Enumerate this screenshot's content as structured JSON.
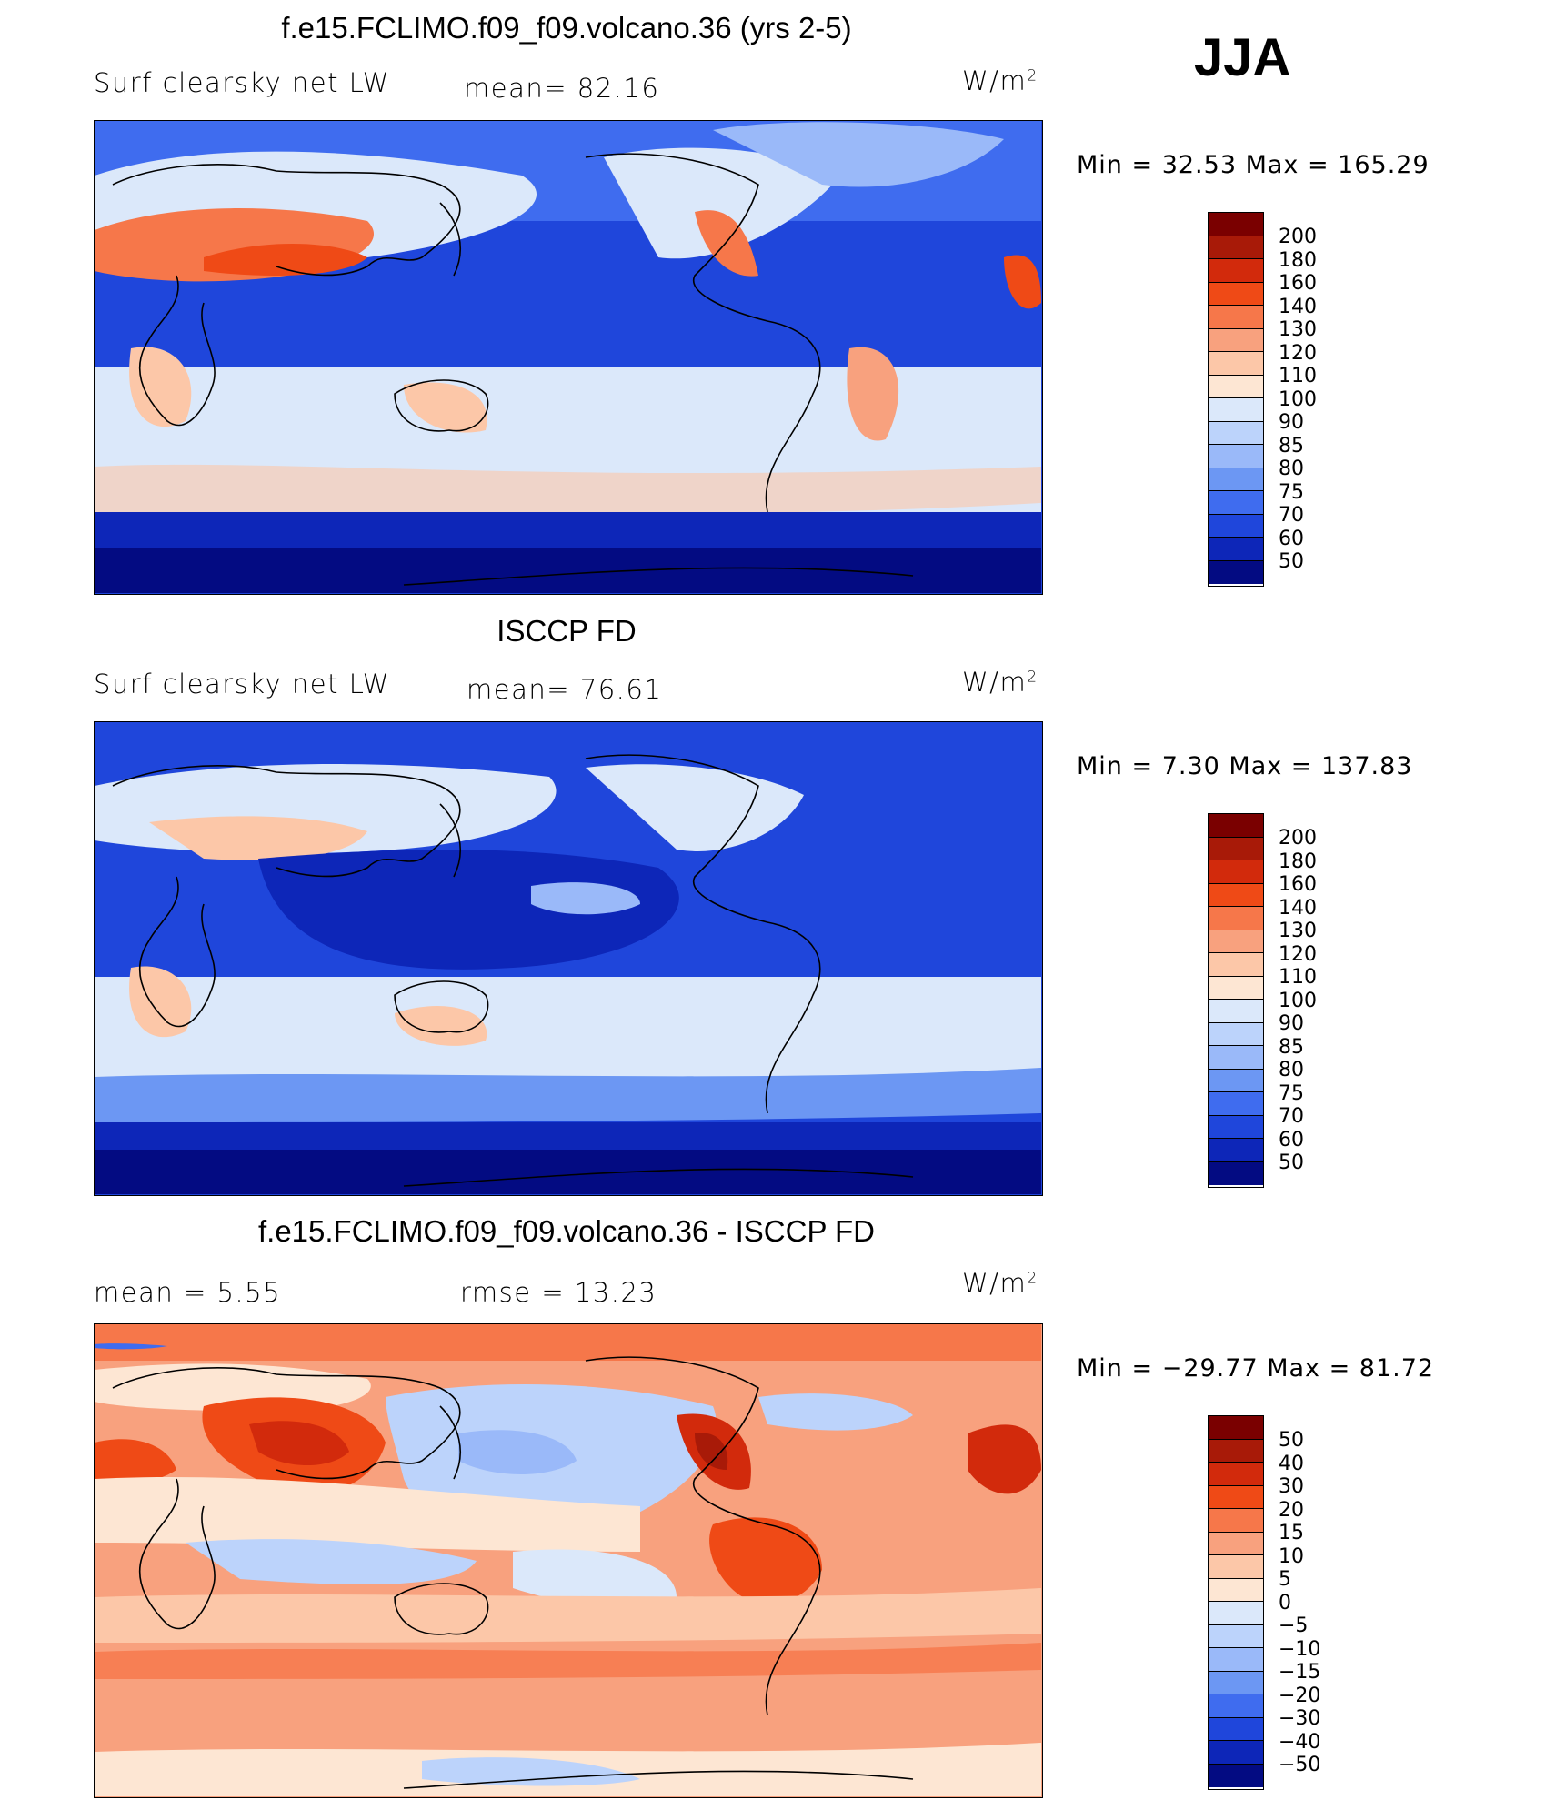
{
  "season": "JJA",
  "panels": [
    {
      "title": "f.e15.FCLIMO.f09_f09.volcano.36 (yrs 2-5)",
      "left_label": "Surf clearsky net LW",
      "center_label": "mean=  82.16",
      "units_base": "W/m",
      "units_exp": "2",
      "minmax": "Min =   32.53 Max = 165.29",
      "colorbar_levels": [
        "200",
        "180",
        "160",
        "140",
        "130",
        "120",
        "110",
        "100",
        "90",
        "85",
        "80",
        "75",
        "70",
        "60",
        "50"
      ]
    },
    {
      "title": "ISCCP FD",
      "left_label": "Surf clearsky net LW",
      "center_label": "mean=  76.61",
      "units_base": "W/m",
      "units_exp": "2",
      "minmax": "Min =    7.30 Max = 137.83",
      "colorbar_levels": [
        "200",
        "180",
        "160",
        "140",
        "130",
        "120",
        "110",
        "100",
        "90",
        "85",
        "80",
        "75",
        "70",
        "60",
        "50"
      ]
    },
    {
      "title": "f.e15.FCLIMO.f09_f09.volcano.36 - ISCCP FD",
      "left_label": "mean =    5.55",
      "center_label": "rmse =   13.23",
      "units_base": "W/m",
      "units_exp": "2",
      "minmax": "Min = −29.77 Max =  81.72",
      "colorbar_levels": [
        "50",
        "40",
        "30",
        "20",
        "15",
        "10",
        "5",
        "0",
        "−5",
        "−10",
        "−15",
        "−20",
        "−30",
        "−40",
        "−50"
      ]
    }
  ],
  "colors": {
    "scale": [
      "#7a0000",
      "#a81a08",
      "#d22a0c",
      "#ef4a16",
      "#f6774a",
      "#f8a17e",
      "#fcc7a8",
      "#fde6d3",
      "#dbe8fa",
      "#bcd3fb",
      "#9ab9f9",
      "#6c97f3",
      "#3f6cef",
      "#1f46db",
      "#0d26b8",
      "#030b82"
    ],
    "land_line": "#000000"
  }
}
